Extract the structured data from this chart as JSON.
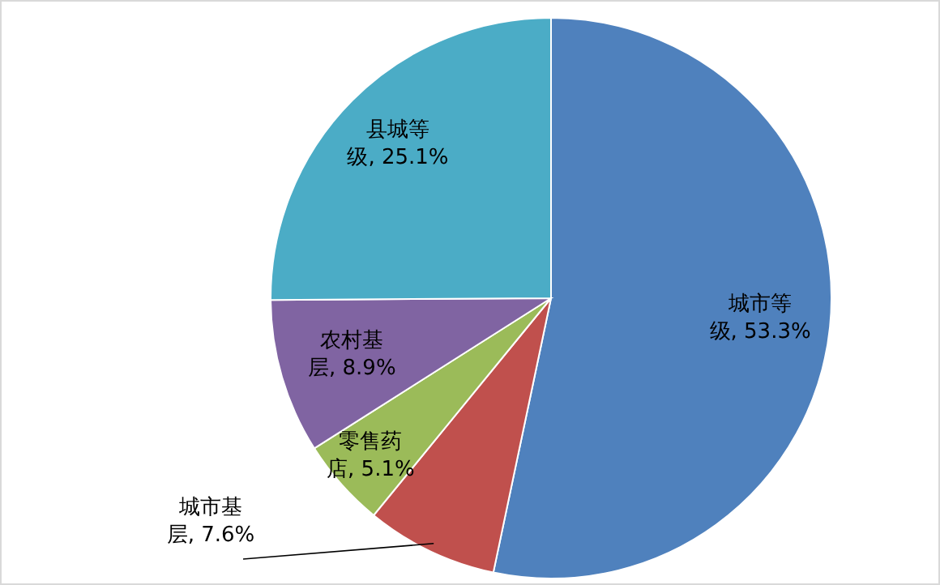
{
  "chart_data": {
    "type": "pie",
    "categories": [
      "城市等级",
      "城市基层",
      "零售药店",
      "农村基层",
      "县城等级"
    ],
    "values": [
      53.3,
      7.6,
      5.1,
      8.9,
      25.1
    ],
    "value_labels": [
      "53.3%",
      "7.6%",
      "5.1%",
      "8.9%",
      "25.1%"
    ],
    "colors": [
      "#4f81bd",
      "#c0504d",
      "#9bbb59",
      "#8064a2",
      "#4bacc6"
    ]
  }
}
